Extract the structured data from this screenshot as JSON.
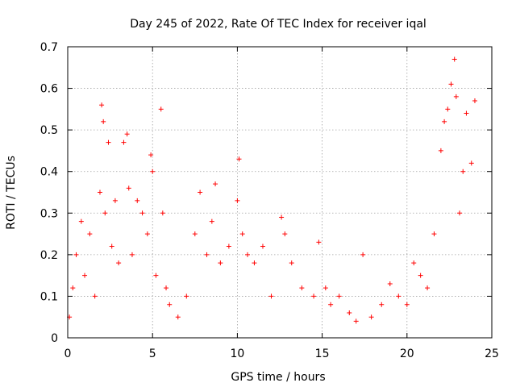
{
  "chart_data": {
    "type": "scatter",
    "title": "Day 245 of 2022, Rate Of TEC Index for receiver iqal",
    "xlabel": "GPS time / hours",
    "ylabel": "ROTI / TECUs",
    "xlim": [
      0,
      25
    ],
    "ylim": [
      0,
      0.7
    ],
    "xticks": [
      "0",
      "5",
      "10",
      "15",
      "20",
      "25"
    ],
    "yticks": [
      "0",
      "0.1",
      "0.2",
      "0.3",
      "0.4",
      "0.5",
      "0.6",
      "0.7"
    ],
    "grid": true,
    "marker": "+",
    "color": "#ff0000",
    "series": [
      {
        "x": [
          0.1,
          0.3,
          0.5,
          0.8,
          1.0,
          1.3,
          1.6,
          1.9,
          2.0,
          2.1,
          2.2,
          2.4,
          2.6,
          2.8,
          3.0,
          3.3,
          3.5,
          3.6,
          3.8,
          4.1,
          4.4,
          4.7,
          4.9,
          5.0,
          5.2,
          5.5,
          5.6,
          5.8,
          6.0,
          6.5,
          7.0,
          7.5,
          7.8,
          8.2,
          8.5,
          8.7,
          9.0,
          9.5,
          10.0,
          10.1,
          10.3,
          10.6,
          11.0,
          11.5,
          12.0,
          12.6,
          12.8,
          13.2,
          13.8,
          14.5,
          14.8,
          15.2,
          15.5,
          16.0,
          16.6,
          17.0,
          17.4,
          17.9,
          18.5,
          19.0,
          19.5,
          20.0,
          20.4,
          20.8,
          21.2,
          21.6,
          22.0,
          22.2,
          22.4,
          22.6,
          22.8,
          22.9,
          23.1,
          23.3,
          23.5,
          23.8,
          24.0
        ],
        "y": [
          0.05,
          0.12,
          0.2,
          0.28,
          0.15,
          0.25,
          0.1,
          0.35,
          0.56,
          0.52,
          0.3,
          0.47,
          0.22,
          0.33,
          0.18,
          0.47,
          0.49,
          0.36,
          0.2,
          0.33,
          0.3,
          0.25,
          0.44,
          0.4,
          0.15,
          0.55,
          0.3,
          0.12,
          0.08,
          0.05,
          0.1,
          0.25,
          0.35,
          0.2,
          0.28,
          0.37,
          0.18,
          0.22,
          0.33,
          0.43,
          0.25,
          0.2,
          0.18,
          0.22,
          0.1,
          0.29,
          0.25,
          0.18,
          0.12,
          0.1,
          0.23,
          0.12,
          0.08,
          0.1,
          0.06,
          0.04,
          0.2,
          0.05,
          0.08,
          0.13,
          0.1,
          0.08,
          0.18,
          0.15,
          0.12,
          0.25,
          0.45,
          0.52,
          0.55,
          0.61,
          0.67,
          0.58,
          0.3,
          0.4,
          0.54,
          0.42,
          0.57
        ]
      }
    ]
  }
}
